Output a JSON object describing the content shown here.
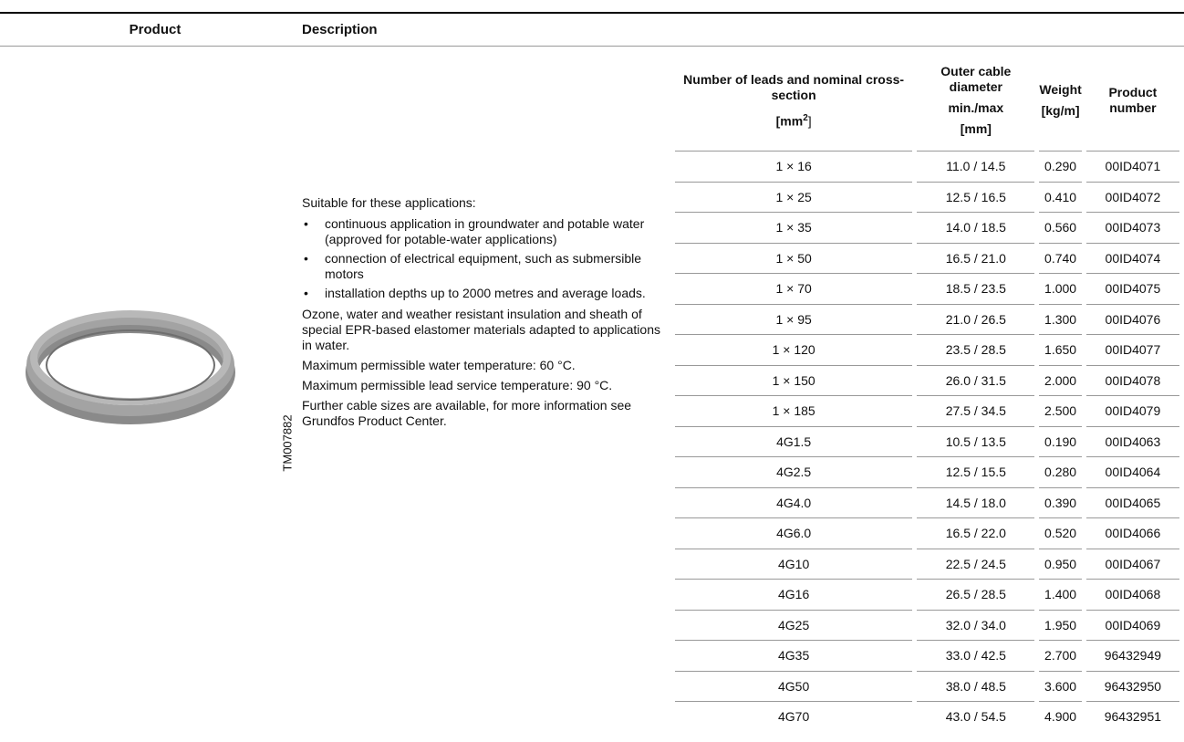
{
  "header": {
    "product": "Product",
    "description": "Description"
  },
  "image_code": "TM007882",
  "description": {
    "intro": "Suitable for these applications:",
    "bullets": [
      "continuous application in groundwater and potable water (approved for potable-water applications)",
      "connection of electrical equipment, such as submersible motors",
      "installation depths up to 2000 metres and average loads."
    ],
    "paragraphs": [
      "Ozone, water and weather resistant insulation and sheath of special EPR-based elastomer materials adapted to applications in water.",
      "Maximum permissible water temperature: 60 °C.",
      "Maximum permissible lead service temperature: 90 °C.",
      "Further cable sizes are available, for more information see Grundfos Product Center."
    ]
  },
  "table": {
    "columns": [
      {
        "lines": [
          "Number of leads and nominal cross-section"
        ],
        "unit": {
          "prefix": "[mm",
          "sup": "2",
          "suffix": "]"
        }
      },
      {
        "lines": [
          "Outer cable diameter",
          "min./max",
          "[mm]"
        ]
      },
      {
        "lines": [
          "Weight",
          "[kg/m]"
        ]
      },
      {
        "lines": [
          "Product number"
        ]
      }
    ],
    "rows": [
      [
        "1 × 16",
        "11.0 / 14.5",
        "0.290",
        "00ID4071"
      ],
      [
        "1 × 25",
        "12.5 / 16.5",
        "0.410",
        "00ID4072"
      ],
      [
        "1 × 35",
        "14.0 / 18.5",
        "0.560",
        "00ID4073"
      ],
      [
        "1 × 50",
        "16.5 / 21.0",
        "0.740",
        "00ID4074"
      ],
      [
        "1 × 70",
        "18.5 / 23.5",
        "1.000",
        "00ID4075"
      ],
      [
        "1 × 95",
        "21.0 / 26.5",
        "1.300",
        "00ID4076"
      ],
      [
        "1 × 120",
        "23.5 / 28.5",
        "1.650",
        "00ID4077"
      ],
      [
        "1 × 150",
        "26.0 / 31.5",
        "2.000",
        "00ID4078"
      ],
      [
        "1 × 185",
        "27.5 / 34.5",
        "2.500",
        "00ID4079"
      ],
      [
        "4G1.5",
        "10.5 / 13.5",
        "0.190",
        "00ID4063"
      ],
      [
        "4G2.5",
        "12.5 / 15.5",
        "0.280",
        "00ID4064"
      ],
      [
        "4G4.0",
        "14.5 / 18.0",
        "0.390",
        "00ID4065"
      ],
      [
        "4G6.0",
        "16.5 / 22.0",
        "0.520",
        "00ID4066"
      ],
      [
        "4G10",
        "22.5 / 24.5",
        "0.950",
        "00ID4067"
      ],
      [
        "4G16",
        "26.5 / 28.5",
        "1.400",
        "00ID4068"
      ],
      [
        "4G25",
        "32.0 / 34.0",
        "1.950",
        "00ID4069"
      ],
      [
        "4G35",
        "33.0 / 42.5",
        "2.700",
        "96432949"
      ],
      [
        "4G50",
        "38.0 / 48.5",
        "3.600",
        "96432950"
      ],
      [
        "4G70",
        "43.0 / 54.5",
        "4.900",
        "96432951"
      ]
    ]
  }
}
